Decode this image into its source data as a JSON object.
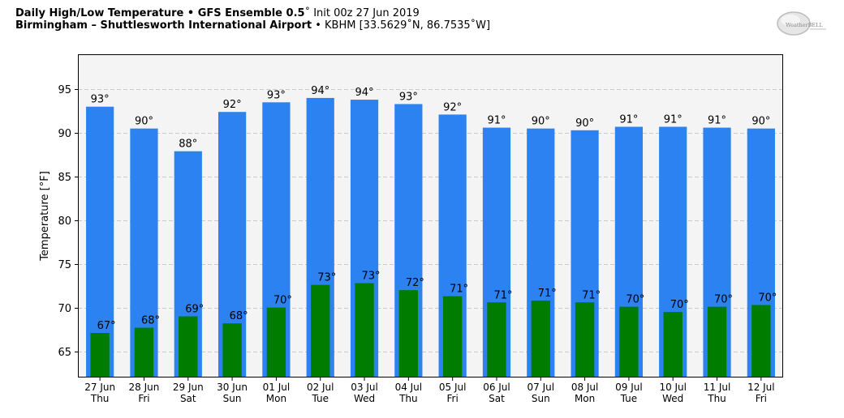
{
  "header": {
    "title_bold": "Daily High/Low Temperature • GFS Ensemble 0.5",
    "title_rest": "˚ Init 00z 27 Jun 2019",
    "location_bold": "Birmingham – Shuttlesworth International Airport",
    "location_rest": " • KBHM [33.5629˚N, 86.7535˚W]"
  },
  "logo": {
    "text": "WeatherBELL"
  },
  "chart_data": {
    "type": "bar",
    "ylabel": "Temperature [°F]",
    "ylim": [
      62,
      99
    ],
    "yticks": [
      65,
      70,
      75,
      80,
      85,
      90,
      95
    ],
    "grid": true,
    "categories": [
      [
        "27 Jun",
        "Thu"
      ],
      [
        "28 Jun",
        "Fri"
      ],
      [
        "29 Jun",
        "Sat"
      ],
      [
        "30 Jun",
        "Sun"
      ],
      [
        "01 Jul",
        "Mon"
      ],
      [
        "02 Jul",
        "Tue"
      ],
      [
        "03 Jul",
        "Wed"
      ],
      [
        "04 Jul",
        "Thu"
      ],
      [
        "05 Jul",
        "Fri"
      ],
      [
        "06 Jul",
        "Sat"
      ],
      [
        "07 Jul",
        "Sun"
      ],
      [
        "08 Jul",
        "Mon"
      ],
      [
        "09 Jul",
        "Tue"
      ],
      [
        "10 Jul",
        "Wed"
      ],
      [
        "11 Jul",
        "Thu"
      ],
      [
        "12 Jul",
        "Fri"
      ]
    ],
    "series": [
      {
        "key": "high",
        "color": "#2b82f0",
        "values": [
          93.0,
          90.5,
          87.9,
          92.4,
          93.5,
          94.0,
          93.8,
          93.3,
          92.1,
          90.6,
          90.5,
          90.3,
          90.7,
          90.7,
          90.6,
          90.5
        ],
        "labels": [
          "93°",
          "90°",
          "88°",
          "92°",
          "93°",
          "94°",
          "94°",
          "93°",
          "92°",
          "91°",
          "90°",
          "90°",
          "91°",
          "91°",
          "91°",
          "90°"
        ]
      },
      {
        "key": "low",
        "color": "#007d00",
        "values": [
          67.1,
          67.7,
          69.0,
          68.2,
          70.0,
          72.6,
          72.8,
          72.0,
          71.3,
          70.6,
          70.8,
          70.6,
          70.1,
          69.5,
          70.1,
          70.3
        ],
        "labels": [
          "67°",
          "68°",
          "69°",
          "68°",
          "70°",
          "73°",
          "73°",
          "72°",
          "71°",
          "71°",
          "71°",
          "71°",
          "70°",
          "70°",
          "70°",
          "70°"
        ]
      }
    ]
  }
}
